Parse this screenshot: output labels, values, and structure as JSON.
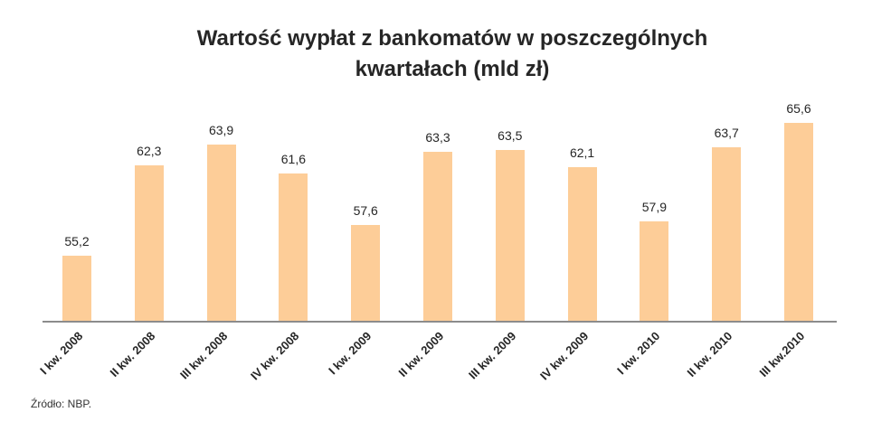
{
  "chart_data": {
    "type": "bar",
    "title": "Wartość wypłat z bankomatów w poszczególnych kwartałach (mld zł)",
    "title_lines": [
      "Wartość wypłat z bankomatów w poszczególnych",
      "kwartałach (mld zł)"
    ],
    "categories": [
      "I kw. 2008",
      "II kw. 2008",
      "III kw. 2008",
      "IV kw. 2008",
      "I kw. 2009",
      "II kw. 2009",
      "III kw. 2009",
      "IV kw. 2009",
      "I kw. 2010",
      "II kw. 2010",
      "III kw.2010"
    ],
    "values": [
      55.2,
      62.3,
      63.9,
      61.6,
      57.6,
      63.3,
      63.5,
      62.1,
      57.9,
      63.7,
      65.6
    ],
    "value_labels": [
      "55,2",
      "62,3",
      "63,9",
      "61,6",
      "57,6",
      "63,3",
      "63,5",
      "62,1",
      "57,9",
      "63,7",
      "65,6"
    ],
    "xlabel": "",
    "ylabel": "",
    "grid": false,
    "legend": null,
    "bar_color": "#fdcd98",
    "axis_color": "#8c8c8c"
  },
  "source": "Źródło: NBP."
}
